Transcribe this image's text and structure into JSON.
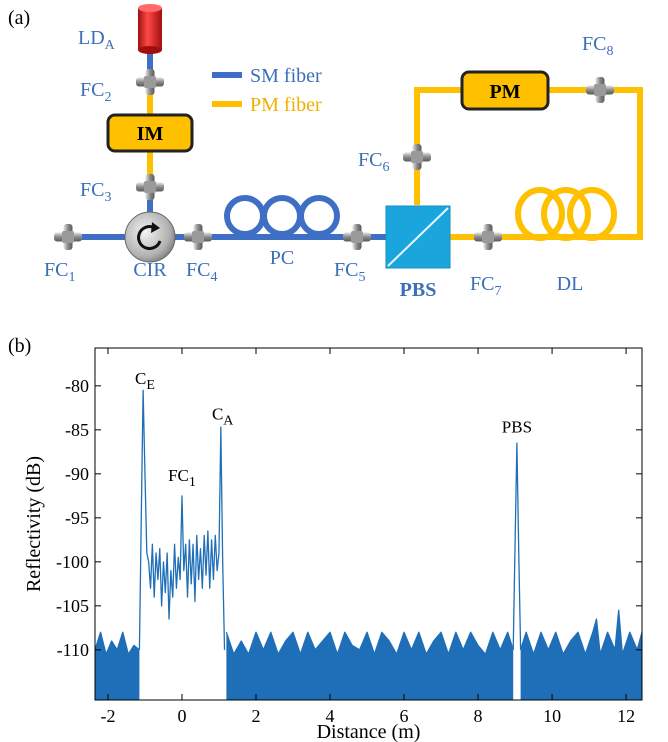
{
  "diagram": {
    "label": "(a)",
    "legend": [
      "SM fiber",
      "PM fiber"
    ],
    "labels": [
      {
        "text": "LD",
        "sub": "A"
      },
      {
        "text": "FC",
        "sub": "2"
      },
      {
        "text": "FC",
        "sub": "3"
      },
      {
        "text": "FC",
        "sub": "1"
      },
      {
        "text": "CIR"
      },
      {
        "text": "FC",
        "sub": "4"
      },
      {
        "text": "PC"
      },
      {
        "text": "FC",
        "sub": "5"
      },
      {
        "text": "PBS"
      },
      {
        "text": "FC",
        "sub": "6"
      },
      {
        "text": "FC",
        "sub": "7"
      },
      {
        "text": "FC",
        "sub": "8"
      },
      {
        "text": "DL"
      }
    ],
    "boxes": [
      "IM",
      "PM"
    ]
  },
  "chart_data": {
    "type": "line",
    "panel_label": "(b)",
    "xlabel": "Distance (m)",
    "ylabel": "Reflectivity (dB)",
    "xlim": [
      -2.35,
      12.43
    ],
    "ylim": [
      -115.7,
      -75.7
    ],
    "xticks": [
      -2,
      0,
      2,
      4,
      6,
      8,
      10,
      12
    ],
    "yticks": [
      -80,
      -85,
      -90,
      -95,
      -100,
      -105,
      -110
    ],
    "series": [
      {
        "color": "#1f6fb8",
        "fill": true,
        "x": [
          -2.35,
          -2.2,
          -2.05,
          -1.9,
          -1.75,
          -1.6,
          -1.45,
          -1.3,
          -1.15,
          0,
          1.2,
          1.4,
          1.6,
          1.8,
          2.0,
          2.2,
          2.4,
          2.6,
          2.8,
          3.0,
          3.2,
          3.4,
          3.6,
          3.8,
          4.0,
          4.2,
          4.4,
          4.6,
          4.8,
          5.0,
          5.2,
          5.4,
          5.6,
          5.8,
          6.0,
          6.2,
          6.4,
          6.6,
          6.8,
          7.0,
          7.2,
          7.4,
          7.6,
          7.8,
          8.0,
          8.2,
          8.4,
          8.6,
          8.8,
          8.95,
          9.05,
          9.15,
          9.3,
          9.5,
          9.7,
          9.9,
          10.1,
          10.3,
          10.5,
          10.7,
          10.9,
          11.1,
          11.2,
          11.3,
          11.5,
          11.7,
          11.8,
          11.9,
          12.1,
          12.3,
          12.43
        ],
        "values": [
          -110,
          -108,
          -110.5,
          -109,
          -110,
          -108,
          -110.5,
          -109.5,
          -110,
          null,
          -108,
          -110.5,
          -109,
          -110.5,
          -108,
          -110,
          -108,
          -110.5,
          -109,
          -108,
          -110.5,
          -108,
          -110,
          -109,
          -108,
          -110.5,
          -108,
          -109.5,
          -110,
          -108,
          -110.5,
          -108,
          -109,
          -110.5,
          -108,
          -110,
          -108,
          -110.5,
          -109,
          -108,
          -110.5,
          -108,
          -110,
          -108,
          -109.5,
          -110.5,
          -108,
          -110,
          -108,
          -110,
          null,
          -110,
          -108,
          -110.5,
          -108,
          -110,
          -108,
          -110.5,
          -109,
          -108,
          -110.5,
          -108,
          -106.5,
          -110.5,
          -108,
          -110,
          -105.5,
          -110.5,
          -108,
          -110,
          -108
        ]
      },
      {
        "color": "#1f6fb8",
        "x": [
          -1.15,
          -1.1,
          -1.05,
          -1.0,
          -0.95,
          -0.9,
          -0.85,
          -0.8,
          -0.75,
          -0.7,
          -0.65,
          -0.6,
          -0.55,
          -0.5,
          -0.45,
          -0.4,
          -0.35,
          -0.3,
          -0.25,
          -0.2,
          -0.15,
          -0.1,
          -0.05,
          0,
          0.05,
          0.1,
          0.15,
          0.2,
          0.25,
          0.3,
          0.35,
          0.4,
          0.45,
          0.5,
          0.55,
          0.6,
          0.65,
          0.7,
          0.75,
          0.8,
          0.85,
          0.9,
          0.95,
          1.0,
          1.05,
          1.1,
          1.15,
          5,
          8.95,
          9.0,
          9.05,
          9.1,
          9.15
        ],
        "values": [
          -110,
          -95,
          -80.5,
          -90,
          -99,
          -100,
          -103,
          -98,
          -104,
          -99,
          -102,
          -98.5,
          -105,
          -100,
          -103.5,
          -99,
          -106.5,
          -101,
          -104,
          -98,
          -103,
          -99.5,
          -102,
          -92.5,
          -101,
          -98,
          -104,
          -97.5,
          -102.5,
          -98,
          -104.5,
          -97,
          -102,
          -98.5,
          -103,
          -97,
          -101.5,
          -96.5,
          -103,
          -97.5,
          -102,
          -97,
          -101,
          -99,
          -84.7,
          -100,
          -110,
          null,
          -110,
          -98,
          -86.5,
          -99,
          -110
        ]
      }
    ],
    "annotations": [
      {
        "text": "C",
        "sub": "E",
        "x": -1.0,
        "y": -79.8
      },
      {
        "text": "FC",
        "sub": "1",
        "x": 0,
        "y": -90.8
      },
      {
        "text": "C",
        "sub": "A",
        "x": 1.1,
        "y": -83.8
      },
      {
        "text": "PBS",
        "x": 9.05,
        "y": -85.3
      }
    ]
  }
}
